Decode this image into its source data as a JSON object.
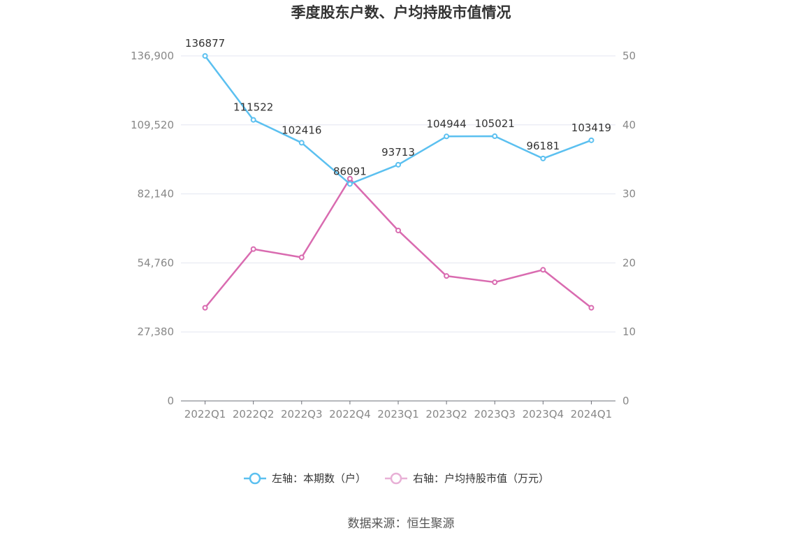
{
  "chart_data": {
    "type": "line",
    "title": "季度股东户数、户均持股市值情况",
    "categories": [
      "2022Q1",
      "2022Q2",
      "2022Q3",
      "2022Q4",
      "2023Q1",
      "2023Q2",
      "2023Q3",
      "2023Q4",
      "2024Q1"
    ],
    "series": [
      {
        "name": "左轴：本期数（户）",
        "axis": "left",
        "color": "#5bc0f0",
        "values": [
          136877,
          111522,
          102416,
          86091,
          93713,
          104944,
          105021,
          96181,
          103419
        ],
        "show_labels": true
      },
      {
        "name": "右轴：户均持股市值（万元）",
        "axis": "right",
        "color": "#d96bb0",
        "legend_color": "#e8b0d6",
        "values": [
          13.5,
          22.0,
          20.8,
          32.2,
          24.7,
          18.1,
          17.2,
          19.0,
          13.5
        ],
        "show_labels": false
      }
    ],
    "left_axis": {
      "ticks": [
        "0",
        "27,380",
        "54,760",
        "82,140",
        "109,520",
        "136,900"
      ],
      "ylim": [
        0,
        136900
      ]
    },
    "right_axis": {
      "ticks": [
        "0",
        "10",
        "20",
        "30",
        "40",
        "50"
      ],
      "ylim": [
        0,
        50
      ]
    },
    "grid": true,
    "legend_position": "bottom-center",
    "source": "数据来源：恒生聚源"
  }
}
